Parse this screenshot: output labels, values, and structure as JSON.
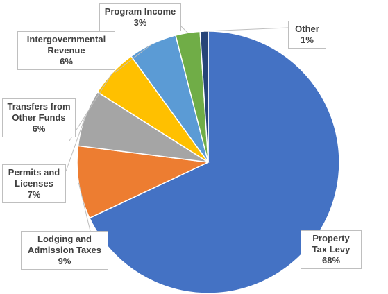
{
  "chart_data": {
    "type": "pie",
    "categories": [
      "Property Tax Levy",
      "Lodging and Admission Taxes",
      "Permits and Licenses",
      "Transfers from Other Funds",
      "Intergovernmental Revenue",
      "Program Income",
      "Other"
    ],
    "values": [
      68,
      9,
      7,
      6,
      6,
      3,
      1
    ],
    "value_labels": [
      "68%",
      "9%",
      "7%",
      "6%",
      "6%",
      "3%",
      "1%"
    ],
    "colors": [
      "#4472c4",
      "#ed7d31",
      "#a5a5a5",
      "#ffc000",
      "#5b9bd5",
      "#70ad47",
      "#264478"
    ]
  }
}
